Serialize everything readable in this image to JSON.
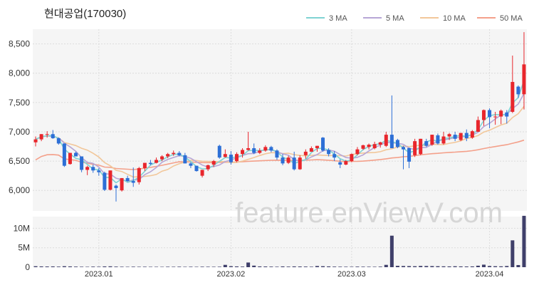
{
  "title": "현대공업(170030)",
  "watermark": "feature.enViewV.com",
  "legend": [
    {
      "name": "3 MA",
      "color": "#7fd3d3"
    },
    {
      "name": "5 MA",
      "color": "#b7a6d6"
    },
    {
      "name": "10 MA",
      "color": "#f2c79a"
    },
    {
      "name": "50 MA",
      "color": "#f4a08a"
    }
  ],
  "colors": {
    "up": "#e8262c",
    "down": "#2d6fd6",
    "volume": "#3f3f6a",
    "panel_bg": "#f5f5f5"
  },
  "chart_data": [
    {
      "type": "candlestick",
      "title": "현대공업(170030)",
      "x_tick_labels": [
        "2023.01",
        "2023.02",
        "2023.03",
        "2023.04"
      ],
      "x_tick_candle_index": [
        11,
        34,
        55,
        79
      ],
      "y_ticks": [
        6000,
        6500,
        7000,
        7500,
        8000,
        8500
      ],
      "y_tick_labels": [
        "6,000",
        "6,500",
        "7,000",
        "7,500",
        "8,000",
        "8,500"
      ],
      "ylim": [
        5650,
        8750
      ],
      "candles": [
        [
          6820,
          6920,
          6750,
          6870
        ],
        [
          6870,
          6960,
          6840,
          6960
        ],
        [
          6960,
          7010,
          6900,
          6960
        ],
        [
          6960,
          7030,
          6880,
          6890
        ],
        [
          6890,
          6900,
          6780,
          6800
        ],
        [
          6800,
          6800,
          6400,
          6420
        ],
        [
          6450,
          6640,
          6440,
          6640
        ],
        [
          6640,
          6660,
          6580,
          6580
        ],
        [
          6580,
          6580,
          6310,
          6350
        ],
        [
          6350,
          6420,
          6260,
          6400
        ],
        [
          6400,
          6440,
          6300,
          6340
        ],
        [
          6340,
          6380,
          6250,
          6310
        ],
        [
          6300,
          6320,
          5990,
          6010
        ],
        [
          6010,
          6340,
          6000,
          6340
        ],
        [
          6080,
          6100,
          5810,
          6040
        ],
        [
          6000,
          6210,
          5980,
          6210
        ],
        [
          6210,
          6250,
          6150,
          6160
        ],
        [
          6160,
          6390,
          6060,
          6130
        ],
        [
          6140,
          6400,
          6100,
          6380
        ],
        [
          6380,
          6470,
          6330,
          6470
        ],
        [
          6470,
          6520,
          6430,
          6450
        ],
        [
          6470,
          6560,
          6460,
          6520
        ],
        [
          6530,
          6600,
          6500,
          6580
        ],
        [
          6580,
          6640,
          6550,
          6620
        ],
        [
          6620,
          6680,
          6590,
          6640
        ],
        [
          6640,
          6670,
          6580,
          6600
        ],
        [
          6600,
          6640,
          6460,
          6460
        ],
        [
          6460,
          6480,
          6380,
          6420
        ],
        [
          6420,
          6420,
          6320,
          6330
        ],
        [
          6250,
          6350,
          6220,
          6350
        ],
        [
          6360,
          6440,
          6330,
          6430
        ],
        [
          6440,
          6520,
          6400,
          6500
        ],
        [
          6760,
          6780,
          6540,
          6560
        ],
        [
          6570,
          6700,
          6560,
          6620
        ],
        [
          6610,
          6670,
          6440,
          6480
        ],
        [
          6500,
          6650,
          6480,
          6620
        ],
        [
          6620,
          6720,
          6560,
          6690
        ],
        [
          6690,
          7000,
          6680,
          6720
        ],
        [
          6720,
          6800,
          6620,
          6640
        ],
        [
          6640,
          6720,
          6620,
          6680
        ],
        [
          6680,
          6770,
          6660,
          6740
        ],
        [
          6740,
          6760,
          6650,
          6680
        ],
        [
          6680,
          6700,
          6520,
          6560
        ],
        [
          6560,
          6620,
          6430,
          6460
        ],
        [
          6470,
          6590,
          6450,
          6560
        ],
        [
          6560,
          6660,
          6340,
          6360
        ],
        [
          6360,
          6600,
          6350,
          6560
        ],
        [
          6600,
          6700,
          6540,
          6660
        ],
        [
          6660,
          6750,
          6660,
          6720
        ],
        [
          6720,
          6760,
          6660,
          6760
        ],
        [
          6900,
          6910,
          6660,
          6680
        ],
        [
          6690,
          6720,
          6580,
          6620
        ],
        [
          6620,
          6670,
          6500,
          6560
        ],
        [
          6480,
          6530,
          6380,
          6440
        ],
        [
          6440,
          6520,
          6430,
          6500
        ],
        [
          6500,
          6630,
          6480,
          6620
        ],
        [
          6620,
          6740,
          6600,
          6700
        ],
        [
          6710,
          6780,
          6690,
          6770
        ],
        [
          6740,
          6800,
          6700,
          6780
        ],
        [
          6720,
          6830,
          6700,
          6790
        ],
        [
          6780,
          6830,
          6730,
          6820
        ],
        [
          6760,
          7000,
          6740,
          6950
        ],
        [
          6950,
          7620,
          6730,
          6720
        ],
        [
          6860,
          6880,
          6720,
          6740
        ],
        [
          6740,
          6760,
          6360,
          6700
        ],
        [
          6720,
          6730,
          6380,
          6490
        ],
        [
          6600,
          6880,
          6570,
          6840
        ],
        [
          6620,
          6880,
          6600,
          6880
        ],
        [
          6840,
          6880,
          6740,
          6760
        ],
        [
          6780,
          6950,
          6760,
          6950
        ],
        [
          6940,
          6970,
          6780,
          6800
        ],
        [
          6800,
          7000,
          6780,
          6920
        ],
        [
          6920,
          6980,
          6860,
          6960
        ],
        [
          6950,
          7000,
          6840,
          6880
        ],
        [
          6860,
          6980,
          6840,
          6980
        ],
        [
          6980,
          7040,
          6840,
          6890
        ],
        [
          6900,
          7030,
          6880,
          7010
        ],
        [
          7000,
          7260,
          7000,
          7200
        ],
        [
          7200,
          7380,
          7100,
          7370
        ],
        [
          7370,
          7400,
          7060,
          7250
        ],
        [
          7250,
          7340,
          7120,
          7260
        ],
        [
          7260,
          7380,
          7130,
          7360
        ],
        [
          7330,
          7370,
          7140,
          7260
        ],
        [
          7340,
          8300,
          7320,
          7850
        ],
        [
          7770,
          7790,
          7580,
          7640
        ],
        [
          7640,
          8700,
          7380,
          8150
        ]
      ],
      "volume": {
        "y_ticks": [
          0,
          5000000,
          10000000
        ],
        "y_tick_labels": [
          "0",
          "5M",
          "10M"
        ],
        "ylim": [
          0,
          13000000
        ],
        "values": [
          250000,
          200000,
          180000,
          200000,
          150000,
          250000,
          200000,
          150000,
          120000,
          100000,
          150000,
          120000,
          200000,
          220000,
          150000,
          120000,
          100000,
          130000,
          110000,
          120000,
          100000,
          100000,
          90000,
          120000,
          110000,
          130000,
          100000,
          120000,
          100000,
          130000,
          120000,
          110000,
          120000,
          600000,
          250000,
          200000,
          150000,
          1200000,
          400000,
          200000,
          180000,
          150000,
          120000,
          200000,
          150000,
          200000,
          180000,
          160000,
          120000,
          300000,
          250000,
          200000,
          150000,
          130000,
          120000,
          110000,
          150000,
          130000,
          120000,
          110000,
          140000,
          600000,
          8100000,
          350000,
          300000,
          280000,
          250000,
          320000,
          300000,
          280000,
          250000,
          220000,
          200000,
          240000,
          200000,
          180000,
          200000,
          380000,
          650000,
          300000,
          250000,
          220000,
          300000,
          6900000,
          550000,
          13200000
        ]
      },
      "series": [
        {
          "name": "3 MA",
          "color": "#7fd3d3"
        },
        {
          "name": "5 MA",
          "color": "#b7a6d6"
        },
        {
          "name": "10 MA",
          "color": "#f2c79a"
        },
        {
          "name": "50 MA",
          "color": "#f4a08a"
        }
      ]
    }
  ]
}
